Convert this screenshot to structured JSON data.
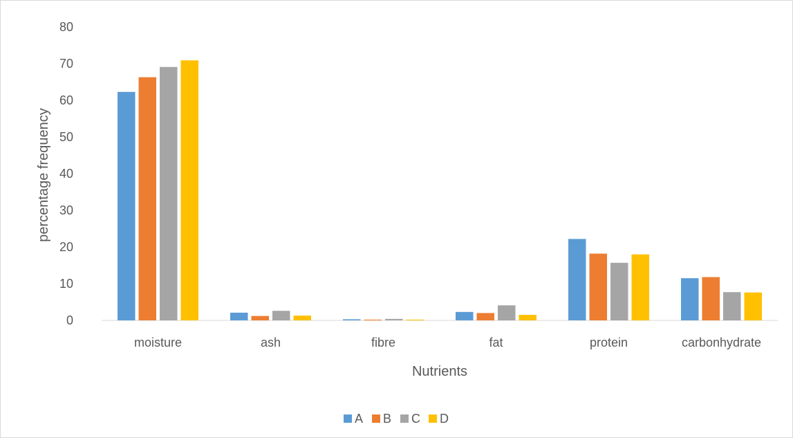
{
  "chart_data": {
    "type": "bar",
    "categories": [
      "moisture",
      "ash",
      "fibre",
      "fat",
      "protein",
      "carbonhydrate"
    ],
    "series": [
      {
        "name": "A",
        "color": "#5b9bd5",
        "values": [
          62.3,
          2.1,
          0.3,
          2.3,
          22.2,
          11.5
        ]
      },
      {
        "name": "B",
        "color": "#ed7d31",
        "values": [
          66.3,
          1.2,
          0.2,
          2.0,
          18.2,
          11.8
        ]
      },
      {
        "name": "C",
        "color": "#a5a5a5",
        "values": [
          69.1,
          2.6,
          0.4,
          4.1,
          15.7,
          7.7
        ]
      },
      {
        "name": "D",
        "color": "#ffc000",
        "values": [
          70.9,
          1.3,
          0.2,
          1.5,
          18.0,
          7.6
        ]
      }
    ],
    "xlabel": "Nutrients",
    "ylabel": "percentage frequency",
    "ylim": [
      0,
      80
    ],
    "yticks": [
      0,
      10,
      20,
      30,
      40,
      50,
      60,
      70,
      80
    ],
    "grid": false,
    "legend_position": "bottom"
  }
}
